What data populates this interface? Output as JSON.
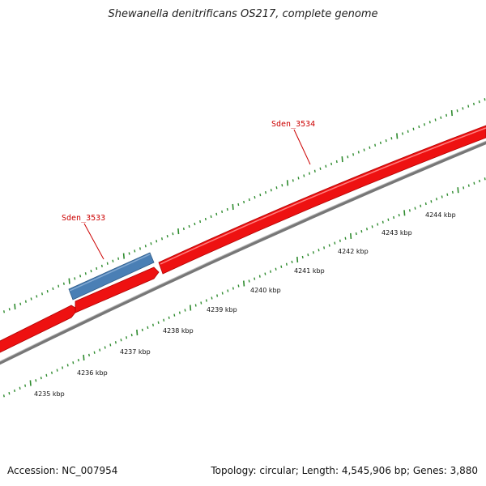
{
  "title": "Shewanella denitrificans OS217, complete genome",
  "footer": {
    "accession": "Accession: NC_007954",
    "summary": "Topology: circular; Length: 4,545,906 bp; Genes: 3,880"
  },
  "colors": {
    "forward_gene": "#ee1111",
    "reverse_gene": "#4a7fb5",
    "backbone": "#888888",
    "tick": "#2e8b2e",
    "gene_label": "#cc0000"
  },
  "ruler": [
    {
      "label": "4235 kbp"
    },
    {
      "label": "4236 kbp"
    },
    {
      "label": "4237 kbp"
    },
    {
      "label": "4238 kbp"
    },
    {
      "label": "4239 kbp"
    },
    {
      "label": "4240 kbp"
    },
    {
      "label": "4241 kbp"
    },
    {
      "label": "4242 kbp"
    },
    {
      "label": "4243 kbp"
    },
    {
      "label": "4244 kbp"
    }
  ],
  "genes": [
    {
      "name": "Sden_3533",
      "strand": "reverse"
    },
    {
      "name": "Sden_3534",
      "strand": "forward"
    }
  ]
}
